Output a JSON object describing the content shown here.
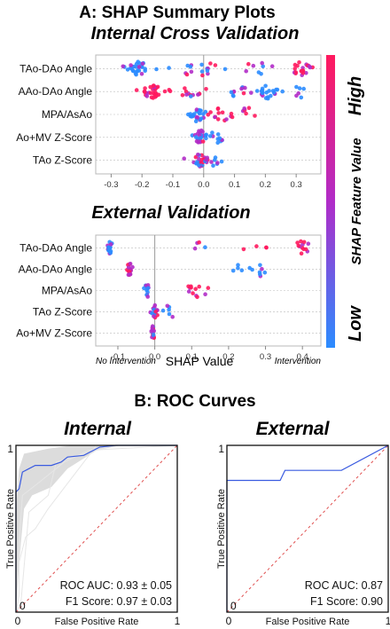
{
  "panel_a_title": "A: SHAP Summary Plots",
  "panel_b_title": "B: ROC Curves",
  "colorbar": {
    "label": "SHAP Feature Value",
    "high": "High",
    "low": "Low",
    "color_low": "#2b8cff",
    "color_mid": "#b12cc8",
    "color_high": "#ff1a5e"
  },
  "chart_data": [
    {
      "type": "scatter",
      "subtype": "beeswarm",
      "title": "Internal Cross Validation",
      "xlabel": "",
      "xlim": [
        -0.35,
        0.38
      ],
      "ticks": [
        -0.3,
        -0.2,
        -0.1,
        0.0,
        0.1,
        0.2,
        0.3
      ],
      "tick_labels": [
        "-0.3",
        "-0.2",
        "-0.1",
        "0.0",
        "0.1",
        "0.2",
        "0.3"
      ],
      "features": [
        {
          "name": "TAo-DAo Angle",
          "clusters": [
            {
              "center": -0.21,
              "spread": 0.05,
              "count": 30,
              "color": "low"
            },
            {
              "center": -0.02,
              "spread": 0.1,
              "count": 16,
              "color": "mid"
            },
            {
              "center": 0.17,
              "spread": 0.06,
              "count": 8,
              "color": "mid"
            },
            {
              "center": 0.32,
              "spread": 0.04,
              "count": 22,
              "color": "high"
            }
          ]
        },
        {
          "name": "AAo-DAo Angle",
          "clusters": [
            {
              "center": -0.17,
              "spread": 0.05,
              "count": 30,
              "color": "high"
            },
            {
              "center": -0.05,
              "spread": 0.06,
              "count": 12,
              "color": "mid"
            },
            {
              "center": 0.12,
              "spread": 0.05,
              "count": 10,
              "color": "mid"
            },
            {
              "center": 0.21,
              "spread": 0.05,
              "count": 24,
              "color": "low"
            },
            {
              "center": 0.31,
              "spread": 0.02,
              "count": 6,
              "color": "low"
            }
          ]
        },
        {
          "name": "MPA/AsAo",
          "clusters": [
            {
              "center": -0.02,
              "spread": 0.03,
              "count": 24,
              "color": "low"
            },
            {
              "center": 0.06,
              "spread": 0.04,
              "count": 14,
              "color": "high"
            },
            {
              "center": 0.14,
              "spread": 0.03,
              "count": 6,
              "color": "high"
            }
          ]
        },
        {
          "name": "Ao+MV Z-Score",
          "clusters": [
            {
              "center": -0.01,
              "spread": 0.02,
              "count": 26,
              "color": "mid"
            },
            {
              "center": 0.04,
              "spread": 0.03,
              "count": 10,
              "color": "low"
            }
          ]
        },
        {
          "name": "TAo Z-Score",
          "clusters": [
            {
              "center": -0.01,
              "spread": 0.025,
              "count": 26,
              "color": "mid"
            },
            {
              "center": 0.04,
              "spread": 0.03,
              "count": 8,
              "color": "low"
            }
          ]
        }
      ]
    },
    {
      "type": "scatter",
      "subtype": "beeswarm",
      "title": "External Validation",
      "xlabel": "SHAP Value",
      "left_annotation": "No Intervention",
      "right_annotation": "Intervention",
      "xlim": [
        -0.16,
        0.45
      ],
      "ticks": [
        -0.1,
        0.0,
        0.1,
        0.2,
        0.3,
        0.4
      ],
      "tick_labels": [
        "-0.1",
        "0.0",
        "0.1",
        "0.2",
        "0.3",
        "0.4"
      ],
      "features": [
        {
          "name": "TAo-DAo Angle",
          "clusters": [
            {
              "center": -0.12,
              "spread": 0.008,
              "count": 14,
              "color": "low"
            },
            {
              "center": 0.12,
              "spread": 0.02,
              "count": 4,
              "color": "mid"
            },
            {
              "center": 0.28,
              "spread": 0.04,
              "count": 4,
              "color": "high"
            },
            {
              "center": 0.4,
              "spread": 0.03,
              "count": 12,
              "color": "high"
            }
          ]
        },
        {
          "name": "AAo-DAo Angle",
          "clusters": [
            {
              "center": -0.07,
              "spread": 0.01,
              "count": 16,
              "color": "high"
            },
            {
              "center": 0.22,
              "spread": 0.01,
              "count": 4,
              "color": "low"
            },
            {
              "center": 0.29,
              "spread": 0.03,
              "count": 8,
              "color": "low"
            }
          ]
        },
        {
          "name": "MPA/AsAo",
          "clusters": [
            {
              "center": -0.02,
              "spread": 0.01,
              "count": 12,
              "color": "low"
            },
            {
              "center": 0.11,
              "spread": 0.04,
              "count": 12,
              "color": "high"
            }
          ]
        },
        {
          "name": "TAo Z-Score",
          "clusters": [
            {
              "center": 0.0,
              "spread": 0.01,
              "count": 16,
              "color": "mid"
            },
            {
              "center": 0.04,
              "spread": 0.02,
              "count": 6,
              "color": "low"
            }
          ]
        },
        {
          "name": "Ao+MV Z-Score",
          "clusters": [
            {
              "center": -0.005,
              "spread": 0.008,
              "count": 14,
              "color": "mid"
            }
          ]
        }
      ]
    },
    {
      "type": "line",
      "title": "Internal",
      "xlabel": "False Positive Rate",
      "ylabel": "True Positive Rate",
      "xlim": [
        0,
        1
      ],
      "ylim": [
        0,
        1
      ],
      "tick_labels": {
        "x0": "0",
        "x1": "1",
        "y0": "0",
        "y1": "1"
      },
      "roc": [
        [
          0,
          0
        ],
        [
          0,
          0.72
        ],
        [
          0.02,
          0.74
        ],
        [
          0.04,
          0.84
        ],
        [
          0.08,
          0.86
        ],
        [
          0.12,
          0.88
        ],
        [
          0.22,
          0.88
        ],
        [
          0.28,
          0.9
        ],
        [
          0.32,
          0.93
        ],
        [
          0.42,
          0.94
        ],
        [
          0.52,
          0.99
        ],
        [
          0.62,
          1.0
        ],
        [
          1,
          1
        ]
      ],
      "band_upper": [
        [
          0,
          0.6
        ],
        [
          0.02,
          0.86
        ],
        [
          0.05,
          0.95
        ],
        [
          0.2,
          0.98
        ],
        [
          0.35,
          1.0
        ],
        [
          1,
          1
        ]
      ],
      "band_lower": [
        [
          0,
          0
        ],
        [
          0.02,
          0.3
        ],
        [
          0.05,
          0.62
        ],
        [
          0.1,
          0.7
        ],
        [
          0.22,
          0.75
        ],
        [
          0.32,
          0.86
        ],
        [
          0.5,
          0.97
        ],
        [
          0.65,
          1.0
        ],
        [
          1,
          1
        ]
      ],
      "folds": [
        [
          [
            0,
            0
          ],
          [
            0.02,
            0.1
          ],
          [
            0.02,
            0.3
          ],
          [
            0.06,
            0.45
          ],
          [
            0.12,
            0.5
          ],
          [
            0.2,
            0.62
          ],
          [
            0.5,
            1.0
          ],
          [
            1,
            1
          ]
        ],
        [
          [
            0,
            0.12
          ],
          [
            0.04,
            0.7
          ],
          [
            0.12,
            0.76
          ],
          [
            0.3,
            0.9
          ],
          [
            0.45,
            0.97
          ],
          [
            1,
            1
          ]
        ],
        [
          [
            0,
            0
          ],
          [
            0.03,
            0.05
          ],
          [
            0.08,
            0.6
          ],
          [
            0.2,
            0.7
          ],
          [
            0.25,
            0.9
          ],
          [
            0.6,
            1.0
          ],
          [
            1,
            1
          ]
        ]
      ],
      "metrics": [
        "ROC AUC: 0.93 ± 0.05",
        "F1 Score:   0.97 ± 0.03"
      ],
      "colors": {
        "mean": "#3a5be0",
        "band": "#d3d3d3",
        "chance": "#e05050"
      }
    },
    {
      "type": "line",
      "title": "External",
      "xlabel": "False Positive Rate",
      "ylabel": "True Positive Rate",
      "xlim": [
        0,
        1
      ],
      "ylim": [
        0,
        1
      ],
      "tick_labels": {
        "x0": "0",
        "x1": "1",
        "y0": "0",
        "y1": "1"
      },
      "roc": [
        [
          0,
          0
        ],
        [
          0,
          0.79
        ],
        [
          0.33,
          0.79
        ],
        [
          0.36,
          0.85
        ],
        [
          0.71,
          0.85
        ],
        [
          1,
          1
        ]
      ],
      "metrics": [
        "ROC AUC: 0.87",
        "F1 Score:   0.90"
      ],
      "colors": {
        "mean": "#3a5be0",
        "chance": "#e05050"
      }
    }
  ]
}
